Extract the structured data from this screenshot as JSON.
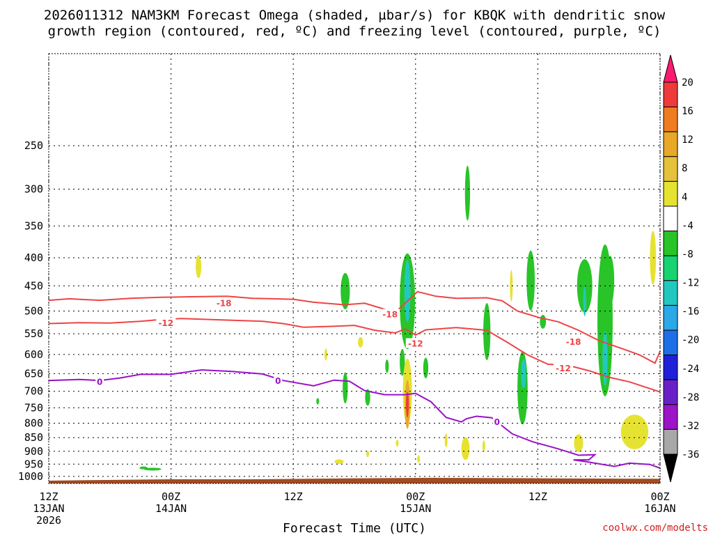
{
  "chart_data": {
    "type": "heatmap",
    "title_line1": "2026011312 NAM3KM Forecast Omega (shaded, µbar/s) for KBQK with dendritic snow",
    "title_line2": "growth region (contoured, red, ºC) and freezing level (contoured, purple, ºC)",
    "xlabel": "Forecast Time (UTC)",
    "credit": "coolwx.com/modelts",
    "x_range_hours": [
      0,
      60
    ],
    "y_range_hpa": [
      1030,
      170
    ],
    "y_scale": "log-pressure",
    "grid": "dotted",
    "y_ticks": [
      250,
      300,
      350,
      400,
      450,
      500,
      550,
      600,
      650,
      700,
      750,
      800,
      850,
      900,
      950,
      1000
    ],
    "x_ticks": [
      {
        "hour": 0,
        "line1": "12Z",
        "line2": "13JAN",
        "line3": "2026"
      },
      {
        "hour": 12,
        "line1": "00Z",
        "line2": "14JAN",
        "line3": ""
      },
      {
        "hour": 24,
        "line1": "12Z",
        "line2": "",
        "line3": ""
      },
      {
        "hour": 36,
        "line1": "00Z",
        "line2": "15JAN",
        "line3": ""
      },
      {
        "hour": 48,
        "line1": "12Z",
        "line2": "",
        "line3": ""
      },
      {
        "hour": 60,
        "line1": "00Z",
        "line2": "16JAN",
        "line3": ""
      }
    ],
    "colorbar": {
      "labels": [
        "20",
        "16",
        "12",
        "8",
        "4",
        "-4",
        "-8",
        "-12",
        "-16",
        "-20",
        "-24",
        "-28",
        "-32",
        "-36"
      ],
      "colors": [
        "#ff1a70",
        "#ee3a3a",
        "#f07c20",
        "#e8a828",
        "#e4c23a",
        "#e6e232",
        "#ffffff",
        "#28c428",
        "#18d470",
        "#22c8c0",
        "#2aa8e8",
        "#1e6ee8",
        "#2020d8",
        "#6a20c8",
        "#9c14c8",
        "#a8a8a8",
        "#000000"
      ]
    },
    "contours": [
      {
        "label": "-18",
        "color": "#ee4444",
        "label_positions": [
          [
            17.2,
            483
          ],
          [
            33.5,
            506
          ],
          [
            51.5,
            568
          ]
        ],
        "points": [
          [
            0,
            478
          ],
          [
            2,
            475
          ],
          [
            5,
            478
          ],
          [
            8,
            474
          ],
          [
            11,
            472
          ],
          [
            14,
            471
          ],
          [
            17.5,
            470
          ],
          [
            20,
            474
          ],
          [
            24,
            476
          ],
          [
            26,
            482
          ],
          [
            29,
            487
          ],
          [
            31,
            484
          ],
          [
            34,
            503
          ],
          [
            36.2,
            461
          ],
          [
            38,
            470
          ],
          [
            40,
            474
          ],
          [
            43,
            473
          ],
          [
            44.5,
            479
          ],
          [
            46,
            500
          ],
          [
            48,
            513
          ],
          [
            50,
            523
          ],
          [
            52,
            542
          ],
          [
            54,
            566
          ],
          [
            56,
            583
          ],
          [
            58,
            601
          ],
          [
            59.5,
            622
          ],
          [
            60,
            592
          ]
        ]
      },
      {
        "label": "-12",
        "color": "#ee4444",
        "label_positions": [
          [
            11.5,
            525
          ],
          [
            36,
            572
          ],
          [
            50.5,
            634
          ]
        ],
        "points": [
          [
            0,
            527
          ],
          [
            3,
            525
          ],
          [
            6,
            526
          ],
          [
            9,
            522
          ],
          [
            11,
            518
          ],
          [
            13,
            516
          ],
          [
            17,
            519
          ],
          [
            21,
            522
          ],
          [
            23,
            527
          ],
          [
            25,
            535
          ],
          [
            28,
            533
          ],
          [
            30,
            531
          ],
          [
            32,
            542
          ],
          [
            34,
            548
          ],
          [
            35,
            539
          ],
          [
            36,
            553
          ],
          [
            37,
            541
          ],
          [
            40,
            536
          ],
          [
            43,
            542
          ],
          [
            45,
            570
          ],
          [
            47,
            601
          ],
          [
            49,
            625
          ],
          [
            51,
            628
          ],
          [
            53,
            642
          ],
          [
            55,
            660
          ],
          [
            57,
            673
          ],
          [
            60,
            702
          ]
        ]
      },
      {
        "label": "0",
        "color": "#9a10c8",
        "label_positions": [
          [
            5,
            672
          ],
          [
            22.5,
            669
          ],
          [
            44,
            794
          ]
        ],
        "points": [
          [
            0,
            669
          ],
          [
            3,
            666
          ],
          [
            5,
            669
          ],
          [
            7,
            662
          ],
          [
            9,
            652
          ],
          [
            12,
            652
          ],
          [
            15,
            640
          ],
          [
            18,
            644
          ],
          [
            21,
            651
          ],
          [
            23,
            669
          ],
          [
            26,
            684
          ],
          [
            28,
            668
          ],
          [
            29.5,
            671
          ],
          [
            31,
            698
          ],
          [
            33,
            710
          ],
          [
            35,
            710
          ],
          [
            36,
            706
          ],
          [
            37.5,
            731
          ],
          [
            39,
            781
          ],
          [
            40.5,
            796
          ],
          [
            41,
            785
          ],
          [
            42,
            777
          ],
          [
            43.5,
            782
          ],
          [
            45.5,
            837
          ],
          [
            47.5,
            865
          ],
          [
            50,
            891
          ],
          [
            52,
            915
          ],
          [
            53.6,
            913
          ],
          [
            53,
            933
          ],
          [
            51.5,
            933
          ],
          [
            53,
            942
          ],
          [
            55.5,
            959
          ],
          [
            57,
            946
          ],
          [
            59,
            951
          ],
          [
            60,
            966
          ]
        ]
      }
    ],
    "blobs": [
      {
        "c": "#e6e232",
        "x": 14.7,
        "y": 415,
        "w": 0.55,
        "h": 40,
        "t": 0
      },
      {
        "c": "#28c428",
        "x": 10.2,
        "y": 970,
        "w": 1.7,
        "h": 10,
        "t": 0.15
      },
      {
        "c": "#28c428",
        "x": 9.3,
        "y": 965,
        "w": 0.8,
        "h": 3,
        "t": 0
      },
      {
        "c": "#28c428",
        "x": 29.1,
        "y": 460,
        "w": 0.9,
        "h": 70,
        "t": 0
      },
      {
        "c": "#28c428",
        "x": 35.2,
        "y": 480,
        "w": 1.5,
        "h": 190,
        "t": 0
      },
      {
        "c": "#22c8c0",
        "x": 35.2,
        "y": 460,
        "w": 0.6,
        "h": 120,
        "t": 0
      },
      {
        "c": "#28c428",
        "x": 34.7,
        "y": 620,
        "w": 0.5,
        "h": 70,
        "t": 0
      },
      {
        "c": "#e6e232",
        "x": 35.2,
        "y": 700,
        "w": 0.9,
        "h": 190,
        "t": 0
      },
      {
        "c": "#e8a828",
        "x": 35.2,
        "y": 740,
        "w": 0.5,
        "h": 150,
        "t": 0
      },
      {
        "c": "#ee3a3a",
        "x": 35.2,
        "y": 740,
        "w": 0.25,
        "h": 80,
        "t": 0
      },
      {
        "c": "#28c428",
        "x": 29.1,
        "y": 690,
        "w": 0.5,
        "h": 90,
        "t": 0
      },
      {
        "c": "#28c428",
        "x": 31.3,
        "y": 718,
        "w": 0.5,
        "h": 50,
        "t": 0
      },
      {
        "c": "#28c428",
        "x": 26.4,
        "y": 730,
        "w": 0.25,
        "h": 20,
        "t": 0
      },
      {
        "c": "#e6e232",
        "x": 30.6,
        "y": 570,
        "w": 0.5,
        "h": 25,
        "t": 0
      },
      {
        "c": "#e6e232",
        "x": 27.2,
        "y": 600,
        "w": 0.15,
        "h": 30,
        "t": 0
      },
      {
        "c": "#28c428",
        "x": 33.2,
        "y": 630,
        "w": 0.35,
        "h": 35,
        "t": 0
      },
      {
        "c": "#e6e232",
        "x": 28.5,
        "y": 940,
        "w": 0.9,
        "h": 18,
        "t": 0
      },
      {
        "c": "#e6e232",
        "x": 31.3,
        "y": 910,
        "w": 0.2,
        "h": 25,
        "t": 0
      },
      {
        "c": "#e6e232",
        "x": 34.2,
        "y": 870,
        "w": 0.2,
        "h": 25,
        "t": 0
      },
      {
        "c": "#e6e232",
        "x": 36.3,
        "y": 930,
        "w": 0.2,
        "h": 30,
        "t": 0
      },
      {
        "c": "#28c428",
        "x": 37.0,
        "y": 635,
        "w": 0.5,
        "h": 55,
        "t": 0
      },
      {
        "c": "#28c428",
        "x": 41.1,
        "y": 305,
        "w": 0.5,
        "h": 70,
        "t": 0
      },
      {
        "c": "#e6e232",
        "x": 39.0,
        "y": 860,
        "w": 0.2,
        "h": 50,
        "t": 0
      },
      {
        "c": "#e6e232",
        "x": 40.9,
        "y": 890,
        "w": 0.8,
        "h": 85,
        "t": 0
      },
      {
        "c": "#28c428",
        "x": 43.0,
        "y": 545,
        "w": 0.7,
        "h": 130,
        "t": 0
      },
      {
        "c": "#e6e232",
        "x": 42.7,
        "y": 880,
        "w": 0.2,
        "h": 40,
        "t": 0
      },
      {
        "c": "#e6e232",
        "x": 45.4,
        "y": 450,
        "w": 0.2,
        "h": 60,
        "t": 0
      },
      {
        "c": "#28c428",
        "x": 47.3,
        "y": 440,
        "w": 0.8,
        "h": 110,
        "t": 0
      },
      {
        "c": "#28c428",
        "x": 46.5,
        "y": 690,
        "w": 1.0,
        "h": 210,
        "t": 0
      },
      {
        "c": "#22c8c0",
        "x": 46.6,
        "y": 650,
        "w": 0.5,
        "h": 80,
        "t": 0
      },
      {
        "c": "#28c428",
        "x": 48.5,
        "y": 523,
        "w": 0.6,
        "h": 30,
        "t": 0
      },
      {
        "c": "#28c428",
        "x": 52.6,
        "y": 450,
        "w": 1.5,
        "h": 100,
        "t": 0
      },
      {
        "c": "#22c8c0",
        "x": 52.6,
        "y": 480,
        "w": 0.3,
        "h": 60,
        "t": 0
      },
      {
        "c": "#28c428",
        "x": 54.6,
        "y": 520,
        "w": 1.5,
        "h": 320,
        "t": 0
      },
      {
        "c": "#22c8c0",
        "x": 54.6,
        "y": 610,
        "w": 0.5,
        "h": 140,
        "t": 0
      },
      {
        "c": "#28c428",
        "x": 55.1,
        "y": 440,
        "w": 0.8,
        "h": 90,
        "t": 0
      },
      {
        "c": "#e6e232",
        "x": 52.0,
        "y": 870,
        "w": 0.9,
        "h": 65,
        "t": 0
      },
      {
        "c": "#e6e232",
        "x": 57.5,
        "y": 830,
        "w": 2.7,
        "h": 120,
        "t": 0
      },
      {
        "c": "#e6e232",
        "x": 59.3,
        "y": 400,
        "w": 0.6,
        "h": 90,
        "t": 0
      }
    ]
  }
}
